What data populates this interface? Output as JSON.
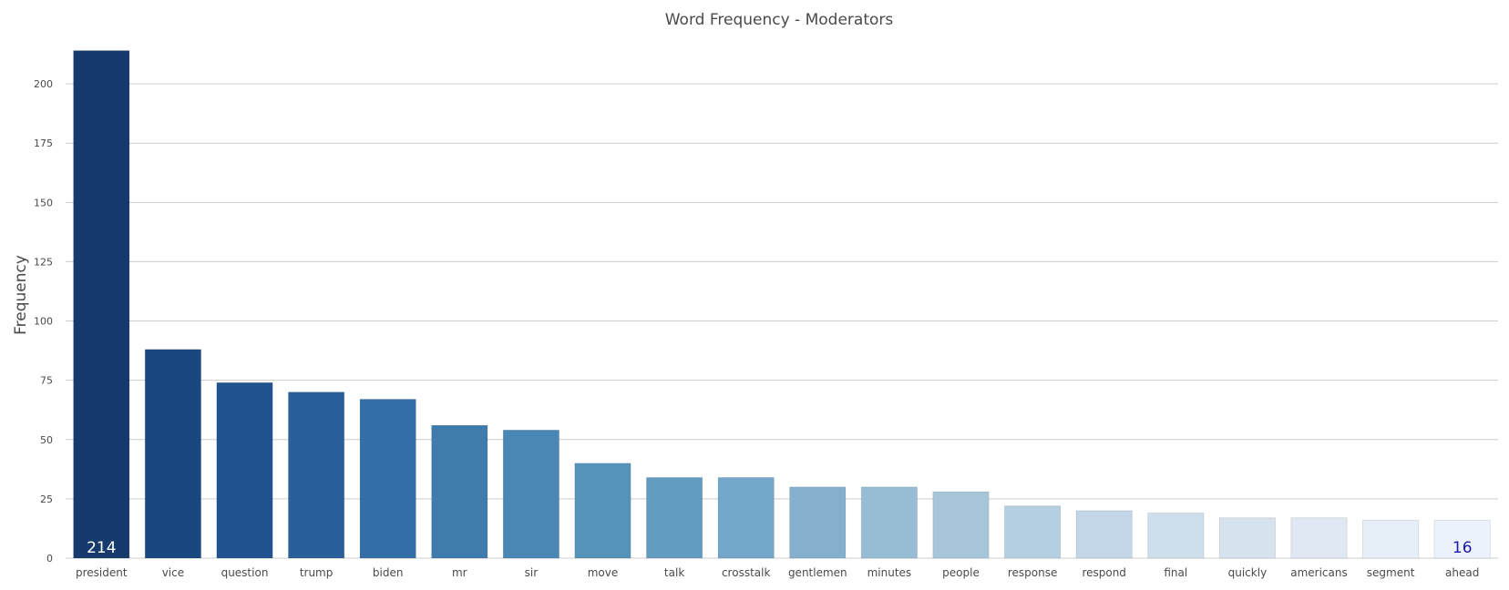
{
  "chart_data": {
    "type": "bar",
    "title": "Word Frequency - Moderators",
    "xlabel": "",
    "ylabel": "Frequency",
    "categories": [
      "president",
      "vice",
      "question",
      "trump",
      "biden",
      "mr",
      "sir",
      "move",
      "talk",
      "crosstalk",
      "gentlemen",
      "minutes",
      "people",
      "response",
      "respond",
      "final",
      "quickly",
      "americans",
      "segment",
      "ahead"
    ],
    "values": [
      214,
      88,
      74,
      70,
      67,
      56,
      54,
      40,
      34,
      34,
      30,
      30,
      28,
      22,
      20,
      19,
      17,
      17,
      16,
      16
    ],
    "ylim": [
      0,
      220
    ],
    "yticks": [
      0,
      25,
      50,
      75,
      100,
      125,
      150,
      175,
      200
    ],
    "grid": true,
    "colors": [
      "#173a6c",
      "#19477f",
      "#205390",
      "#2b5f99",
      "#346ea6",
      "#3f7bac",
      "#4a87b5",
      "#5693ba",
      "#649cc1",
      "#72a7c9",
      "#85b0cd",
      "#96bdd3",
      "#a8c6da",
      "#b5cfe2",
      "#c2d6e8",
      "#cedeeb",
      "#d6e2ee",
      "#dfe8f3",
      "#e6eef7",
      "#ebf2fb"
    ],
    "data_labels": [
      {
        "index": 0,
        "text": "214",
        "color": "#ffffff"
      },
      {
        "index": 19,
        "text": "16",
        "color": "#1a1aa6"
      }
    ]
  }
}
